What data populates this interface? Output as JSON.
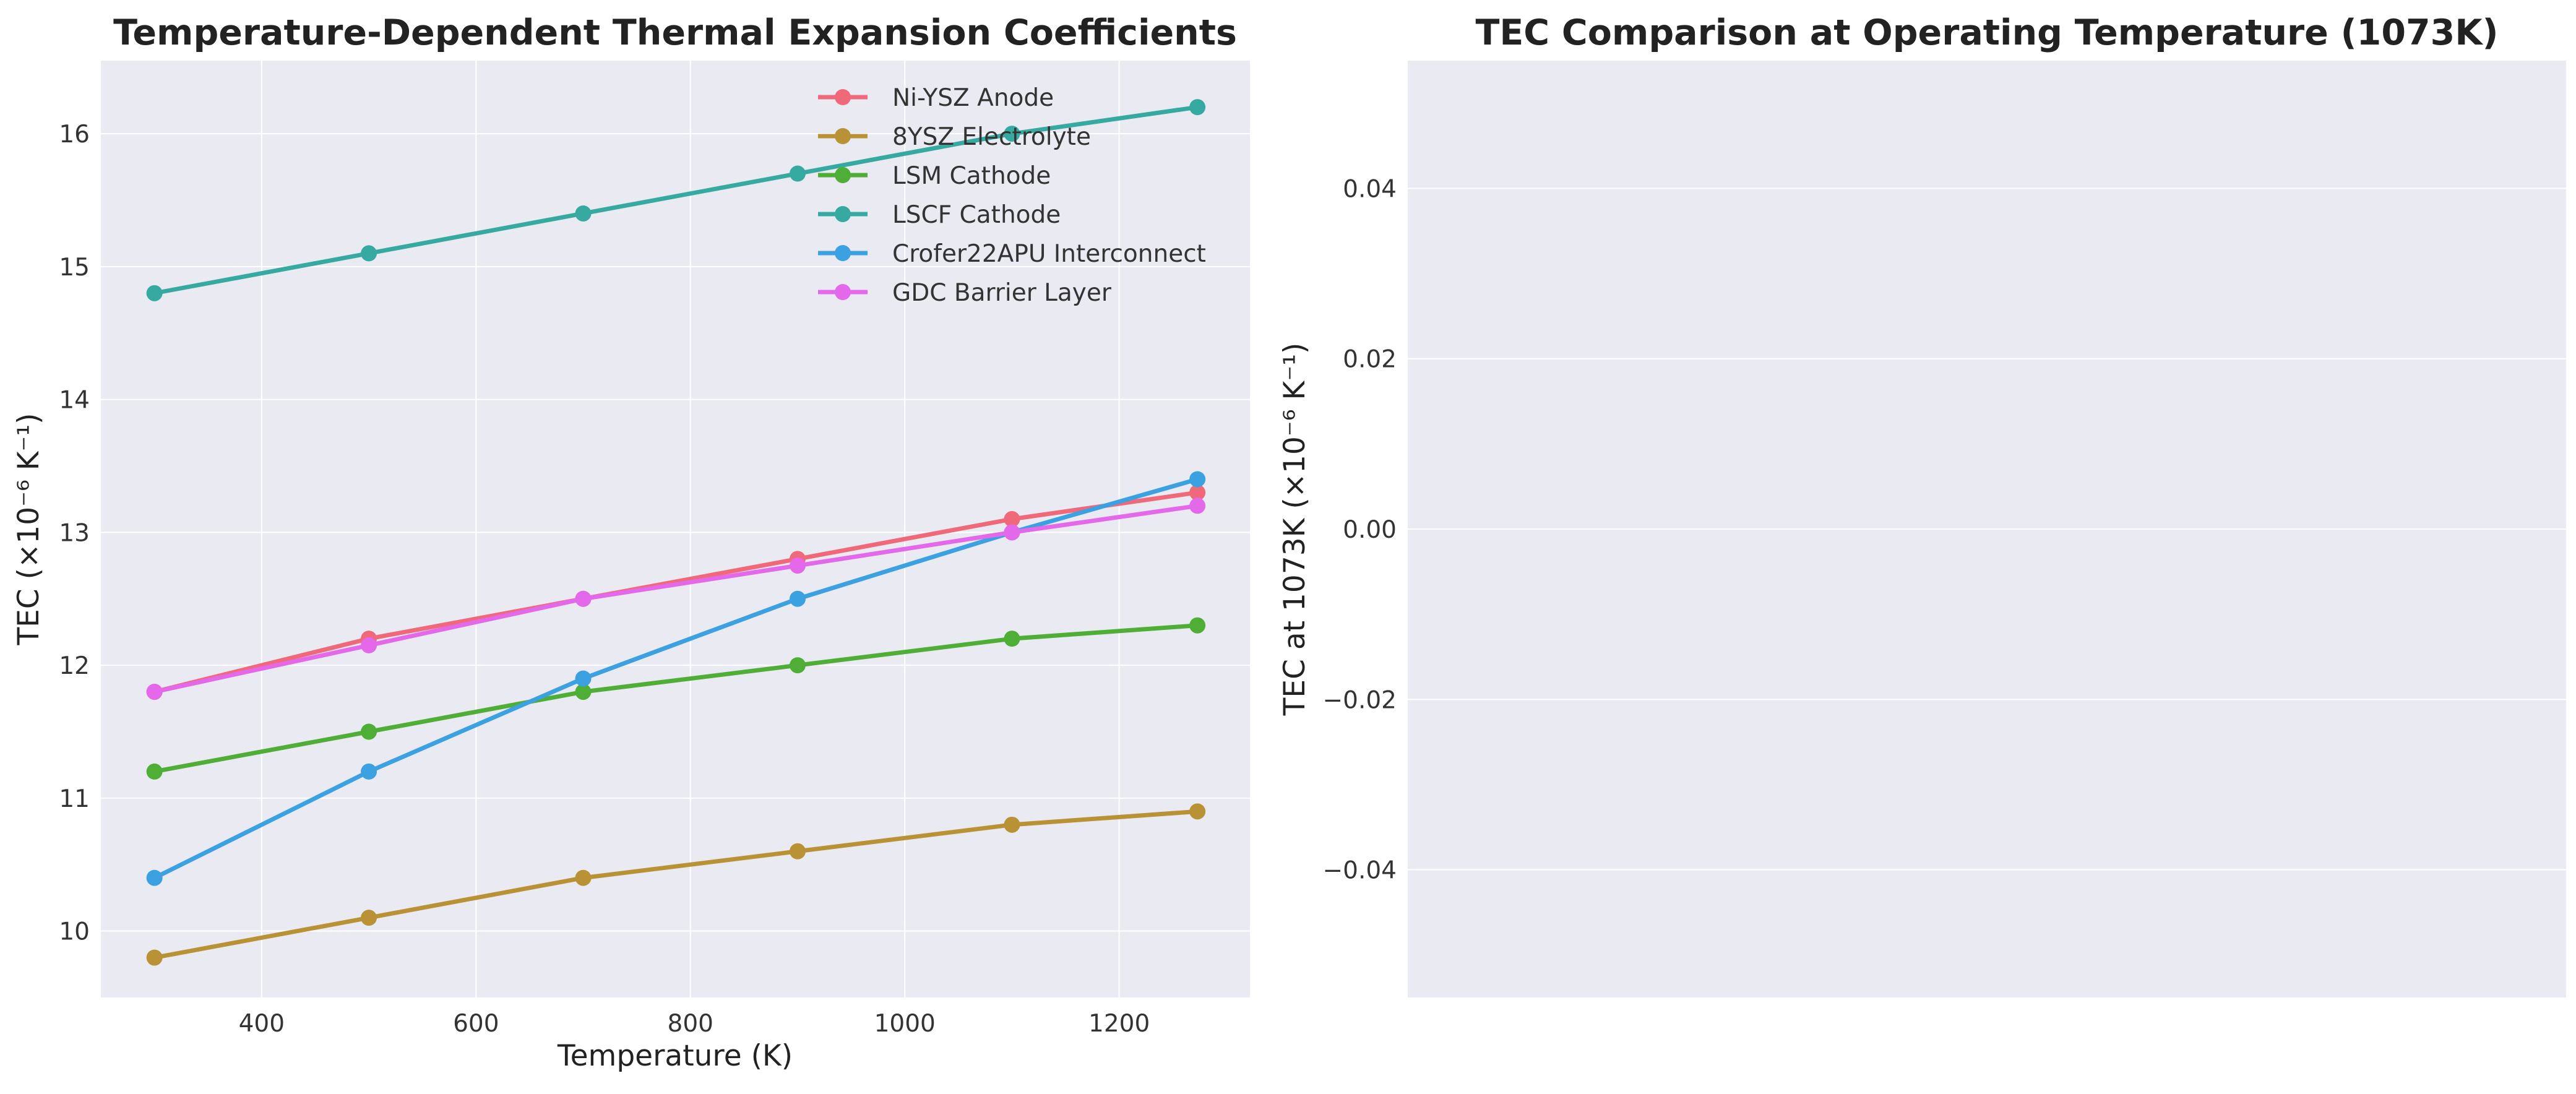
{
  "chart_data": [
    {
      "type": "line",
      "title": "Temperature-Dependent Thermal Expansion Coefficients",
      "xlabel": "Temperature (K)",
      "ylabel": "TEC (×10⁻⁶ K⁻¹)",
      "xlim": [
        250,
        1322
      ],
      "ylim": [
        9.5,
        16.55
      ],
      "xticks": [
        400,
        600,
        800,
        1000,
        1200
      ],
      "yticks": [
        10,
        11,
        12,
        13,
        14,
        15,
        16
      ],
      "grid": true,
      "legend_position": "top-right",
      "x": [
        300,
        500,
        700,
        900,
        1100,
        1273
      ],
      "series": [
        {
          "name": "Ni-YSZ Anode",
          "color": "#f0697a",
          "values": [
            11.8,
            12.2,
            12.5,
            12.8,
            13.1,
            13.3
          ]
        },
        {
          "name": "8YSZ Electrolyte",
          "color": "#b89234",
          "values": [
            9.8,
            10.1,
            10.4,
            10.6,
            10.8,
            10.9
          ]
        },
        {
          "name": "LSM Cathode",
          "color": "#4fae35",
          "values": [
            11.2,
            11.5,
            11.8,
            12.0,
            12.2,
            12.3
          ]
        },
        {
          "name": "LSCF Cathode",
          "color": "#36aaa0",
          "values": [
            14.8,
            15.1,
            15.4,
            15.7,
            16.0,
            16.2
          ]
        },
        {
          "name": "Crofer22APU Interconnect",
          "color": "#3ba1e0",
          "values": [
            10.4,
            11.2,
            11.9,
            12.5,
            13.0,
            13.4
          ]
        },
        {
          "name": "GDC Barrier Layer",
          "color": "#e469ea",
          "values": [
            11.8,
            12.15,
            12.5,
            12.75,
            13.0,
            13.2
          ]
        }
      ]
    },
    {
      "type": "bar",
      "title": "TEC Comparison at Operating Temperature (1073K)",
      "xlabel": "",
      "ylabel": "TEC at 1073K (×10⁻⁶ K⁻¹)",
      "ylim": [
        -0.055,
        0.055
      ],
      "yticks": [
        "0.04",
        "0.02",
        "0.00",
        "−0.02",
        "−0.04"
      ],
      "ytick_values": [
        0.04,
        0.02,
        0.0,
        -0.02,
        -0.04
      ],
      "categories": [],
      "values": [],
      "grid": true
    }
  ]
}
